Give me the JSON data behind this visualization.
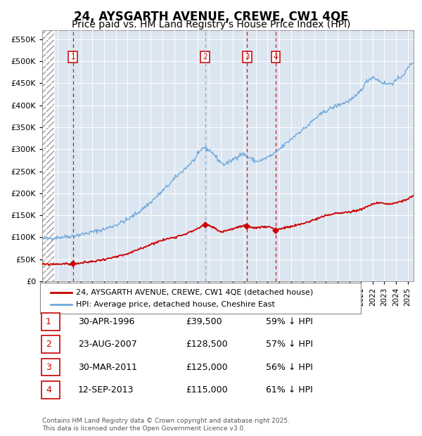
{
  "title": "24, AYSGARTH AVENUE, CREWE, CW1 4QE",
  "subtitle": "Price paid vs. HM Land Registry's House Price Index (HPI)",
  "title_fontsize": 12,
  "subtitle_fontsize": 10,
  "bg_color": "#dce6f1",
  "hpi_color": "#6fa8dc",
  "price_color": "#cc0000",
  "ylim": [
    0,
    570000
  ],
  "yticks": [
    0,
    50000,
    100000,
    150000,
    200000,
    250000,
    300000,
    350000,
    400000,
    450000,
    500000,
    550000
  ],
  "xlim_start": 1993.7,
  "xlim_end": 2025.5,
  "hatch_end": 1994.75,
  "sales": [
    {
      "num": 1,
      "year": 1996.33,
      "price": 39500,
      "label": "30-APR-1996",
      "pct": "59% ↓ HPI"
    },
    {
      "num": 2,
      "year": 2007.65,
      "price": 128500,
      "label": "23-AUG-2007",
      "pct": "57% ↓ HPI"
    },
    {
      "num": 3,
      "year": 2011.25,
      "price": 125000,
      "label": "30-MAR-2011",
      "pct": "56% ↓ HPI"
    },
    {
      "num": 4,
      "year": 2013.7,
      "price": 115000,
      "label": "12-SEP-2013",
      "pct": "61% ↓ HPI"
    }
  ],
  "legend_line1": "24, AYSGARTH AVENUE, CREWE, CW1 4QE (detached house)",
  "legend_line2": "HPI: Average price, detached house, Cheshire East",
  "table_rows": [
    {
      "num": "1",
      "date": "30-APR-1996",
      "price": "£39,500",
      "pct": "59% ↓ HPI"
    },
    {
      "num": "2",
      "date": "23-AUG-2007",
      "price": "£128,500",
      "pct": "57% ↓ HPI"
    },
    {
      "num": "3",
      "date": "30-MAR-2011",
      "price": "£125,000",
      "pct": "56% ↓ HPI"
    },
    {
      "num": "4",
      "date": "12-SEP-2013",
      "price": "£115,000",
      "pct": "61% ↓ HPI"
    }
  ],
  "footer": "Contains HM Land Registry data © Crown copyright and database right 2025.\nThis data is licensed under the Open Government Licence v3.0.",
  "hpi_anchors": [
    [
      1993.7,
      95000
    ],
    [
      1994.0,
      97000
    ],
    [
      1994.8,
      99000
    ],
    [
      1996.0,
      102000
    ],
    [
      1997.0,
      106000
    ],
    [
      1998.0,
      112000
    ],
    [
      1999.0,
      118000
    ],
    [
      2000.0,
      128000
    ],
    [
      2001.0,
      140000
    ],
    [
      2002.0,
      158000
    ],
    [
      2003.0,
      180000
    ],
    [
      2003.8,
      200000
    ],
    [
      2004.5,
      218000
    ],
    [
      2005.2,
      238000
    ],
    [
      2006.0,
      258000
    ],
    [
      2006.8,
      278000
    ],
    [
      2007.5,
      305000
    ],
    [
      2008.2,
      295000
    ],
    [
      2008.7,
      278000
    ],
    [
      2009.2,
      265000
    ],
    [
      2009.8,
      272000
    ],
    [
      2010.3,
      282000
    ],
    [
      2010.8,
      290000
    ],
    [
      2011.0,
      288000
    ],
    [
      2011.5,
      280000
    ],
    [
      2012.0,
      272000
    ],
    [
      2012.5,
      275000
    ],
    [
      2013.0,
      282000
    ],
    [
      2013.5,
      288000
    ],
    [
      2014.0,
      300000
    ],
    [
      2014.8,
      318000
    ],
    [
      2015.5,
      335000
    ],
    [
      2016.3,
      350000
    ],
    [
      2017.0,
      368000
    ],
    [
      2018.0,
      388000
    ],
    [
      2019.0,
      400000
    ],
    [
      2019.8,
      408000
    ],
    [
      2020.5,
      418000
    ],
    [
      2021.0,
      435000
    ],
    [
      2021.5,
      455000
    ],
    [
      2022.0,
      465000
    ],
    [
      2022.3,
      460000
    ],
    [
      2022.8,
      452000
    ],
    [
      2023.3,
      448000
    ],
    [
      2023.8,
      452000
    ],
    [
      2024.3,
      462000
    ],
    [
      2024.8,
      475000
    ],
    [
      2025.2,
      492000
    ],
    [
      2025.5,
      500000
    ]
  ],
  "price_anchors": [
    [
      1993.7,
      38000
    ],
    [
      1994.0,
      38500
    ],
    [
      1994.8,
      39000
    ],
    [
      1995.5,
      39500
    ],
    [
      1996.0,
      39200
    ],
    [
      1996.33,
      39500
    ],
    [
      1997.0,
      41000
    ],
    [
      1997.5,
      43000
    ],
    [
      1998.0,
      45000
    ],
    [
      1998.5,
      47000
    ],
    [
      1999.0,
      50000
    ],
    [
      1999.5,
      52000
    ],
    [
      2000.0,
      55000
    ],
    [
      2000.5,
      58000
    ],
    [
      2001.0,
      62000
    ],
    [
      2001.5,
      67000
    ],
    [
      2002.0,
      73000
    ],
    [
      2002.5,
      78000
    ],
    [
      2003.0,
      84000
    ],
    [
      2003.5,
      89000
    ],
    [
      2004.0,
      93000
    ],
    [
      2004.5,
      97000
    ],
    [
      2005.0,
      100000
    ],
    [
      2005.5,
      104000
    ],
    [
      2006.0,
      108000
    ],
    [
      2006.5,
      113000
    ],
    [
      2007.0,
      120000
    ],
    [
      2007.4,
      125000
    ],
    [
      2007.65,
      128500
    ],
    [
      2007.9,
      127000
    ],
    [
      2008.3,
      123000
    ],
    [
      2008.7,
      117000
    ],
    [
      2009.0,
      112000
    ],
    [
      2009.3,
      114000
    ],
    [
      2009.7,
      117000
    ],
    [
      2010.0,
      119000
    ],
    [
      2010.4,
      122000
    ],
    [
      2010.8,
      125000
    ],
    [
      2011.0,
      126000
    ],
    [
      2011.25,
      125000
    ],
    [
      2011.5,
      123000
    ],
    [
      2011.8,
      122000
    ],
    [
      2012.2,
      122000
    ],
    [
      2012.6,
      124000
    ],
    [
      2013.0,
      124000
    ],
    [
      2013.3,
      123000
    ],
    [
      2013.7,
      115000
    ],
    [
      2013.9,
      118000
    ],
    [
      2014.2,
      120000
    ],
    [
      2014.6,
      122000
    ],
    [
      2015.0,
      124000
    ],
    [
      2015.5,
      127000
    ],
    [
      2016.0,
      131000
    ],
    [
      2016.5,
      135000
    ],
    [
      2017.0,
      140000
    ],
    [
      2017.5,
      145000
    ],
    [
      2018.0,
      149000
    ],
    [
      2018.5,
      152000
    ],
    [
      2019.0,
      155000
    ],
    [
      2019.5,
      156000
    ],
    [
      2020.0,
      157000
    ],
    [
      2020.5,
      160000
    ],
    [
      2021.0,
      164000
    ],
    [
      2021.5,
      169000
    ],
    [
      2022.0,
      175000
    ],
    [
      2022.3,
      178000
    ],
    [
      2022.7,
      179000
    ],
    [
      2023.0,
      177000
    ],
    [
      2023.3,
      175000
    ],
    [
      2023.7,
      176000
    ],
    [
      2024.0,
      178000
    ],
    [
      2024.4,
      181000
    ],
    [
      2024.8,
      185000
    ],
    [
      2025.2,
      190000
    ],
    [
      2025.5,
      193000
    ]
  ]
}
